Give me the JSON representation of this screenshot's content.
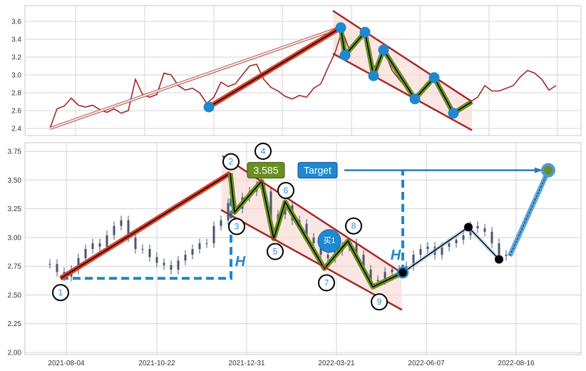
{
  "colors": {
    "price_line": "#a0282a",
    "candle": "#4a5570",
    "trend": "#d9402a",
    "wave": "#6b8e23",
    "channel": "#a52a2a",
    "channel_fill": "#f6d6d0",
    "accent_blue": "#1e88d0",
    "marker_black": "#000000"
  },
  "chart_data": [
    {
      "type": "line",
      "panel": "top",
      "ylim": [
        2.33,
        3.78
      ],
      "yticks": [
        2.4,
        2.6,
        2.8,
        3.0,
        3.2,
        3.4,
        3.6
      ],
      "grid": true,
      "series": [
        {
          "values": [
            2.4,
            2.62,
            2.65,
            2.74,
            2.66,
            2.64,
            2.66,
            2.61,
            2.58,
            2.62,
            2.57,
            2.6,
            2.95,
            2.78,
            2.75,
            2.78,
            3.02,
            3.0,
            2.88,
            2.83,
            2.85,
            2.8,
            2.68,
            2.75,
            2.92,
            2.87,
            2.9,
            3.0,
            3.1,
            3.12,
            2.95,
            2.86,
            2.82,
            2.76,
            2.73,
            2.77,
            2.75,
            2.85,
            2.9,
            3.08,
            3.25,
            3.5,
            3.28,
            3.35,
            3.45,
            3.1,
            3.1,
            3.25,
            3.05,
            2.95,
            2.85,
            2.75,
            2.8,
            2.88,
            2.95,
            2.8,
            2.62,
            2.58,
            2.66,
            2.7,
            2.75,
            2.88,
            2.82,
            2.82,
            2.85,
            2.88,
            2.98,
            3.05,
            3.02,
            2.95,
            2.83,
            2.88
          ]
        }
      ],
      "trend_arrow": [
        [
          0,
          2.4
        ],
        [
          40.3,
          3.52
        ]
      ],
      "trend_line": [
        [
          22.3,
          2.64
        ],
        [
          40.8,
          3.53
        ]
      ],
      "wave_points": [
        [
          22.3,
          2.64
        ],
        [
          40.8,
          3.53
        ],
        [
          41.4,
          3.22
        ],
        [
          44.2,
          3.48
        ],
        [
          45.4,
          2.99
        ],
        [
          46.8,
          3.28
        ],
        [
          51.2,
          2.73
        ],
        [
          53.9,
          2.97
        ],
        [
          56.6,
          2.57
        ],
        [
          59.2,
          2.7
        ]
      ],
      "channel_upper": [
        [
          39.7,
          3.72
        ],
        [
          59.2,
          2.7
        ]
      ],
      "channel_lower": [
        [
          39.7,
          3.24
        ],
        [
          59.2,
          2.38
        ]
      ]
    },
    {
      "type": "candlestick",
      "panel": "bottom",
      "ylim": [
        1.98,
        3.83
      ],
      "yticks": [
        "2.00",
        "2.25",
        "2.50",
        "2.75",
        "3.00",
        "3.25",
        "3.50",
        "3.75"
      ],
      "xticks": [
        {
          "label": "2021-08-04",
          "bar": 2.3
        },
        {
          "label": "2021-10-22",
          "bar": 15
        },
        {
          "label": "2021-12-31",
          "bar": 27.6
        },
        {
          "label": "2022-03-21",
          "bar": 40.2
        },
        {
          "label": "2022-06-07",
          "bar": 52.8
        },
        {
          "label": "2022-08-16",
          "bar": 65.4
        }
      ],
      "grid": true,
      "close": [
        2.77,
        2.7,
        2.66,
        2.72,
        2.82,
        2.9,
        2.95,
        2.92,
        3.02,
        3.1,
        3.15,
        3.0,
        2.9,
        2.9,
        2.83,
        2.78,
        2.76,
        2.72,
        2.8,
        2.85,
        2.9,
        2.95,
        2.95,
        3.1,
        3.15,
        3.3,
        3.25,
        3.35,
        3.4,
        3.45,
        3.4,
        3.1,
        3.2,
        3.28,
        3.15,
        3.12,
        3.0,
        2.95,
        2.85,
        2.82,
        2.88,
        2.92,
        2.95,
        2.85,
        2.72,
        2.62,
        2.63,
        2.7,
        2.72,
        2.7,
        2.75,
        2.85,
        2.9,
        2.92,
        2.85,
        2.92,
        2.95,
        2.98,
        3.02,
        3.1,
        3.08,
        3.05,
        2.95,
        2.85,
        2.84
      ],
      "trend_line": [
        [
          1.5,
          2.645
        ],
        [
          25.3,
          3.56
        ]
      ],
      "wave_points": [
        {
          "label": "1",
          "bar": 1.5,
          "value": 2.645
        },
        {
          "label": "2",
          "bar": 25.3,
          "value": 3.56
        },
        {
          "label": "3",
          "bar": 25.9,
          "value": 3.22
        },
        {
          "label": "4",
          "bar": 29.7,
          "value": 3.49
        },
        {
          "label": "5",
          "bar": 31.4,
          "value": 2.99
        },
        {
          "label": "6",
          "bar": 33.0,
          "value": 3.31
        },
        {
          "label": "7",
          "bar": 38.5,
          "value": 2.73
        },
        {
          "label": "8",
          "bar": 41.8,
          "value": 2.97
        },
        {
          "label": "9",
          "bar": 45.3,
          "value": 2.57
        },
        {
          "label": "",
          "bar": 49.5,
          "value": 2.695
        }
      ],
      "channel_upper": [
        [
          24.2,
          3.71
        ],
        [
          49.3,
          2.695
        ]
      ],
      "channel_lower": [
        [
          24.0,
          3.24
        ],
        [
          49.4,
          2.37
        ]
      ],
      "forecast_points": [
        [
          49.5,
          2.695
        ],
        [
          58.7,
          3.09
        ],
        [
          63.0,
          2.81
        ]
      ],
      "target_leg": [
        [
          64.5,
          2.84
        ],
        [
          69.9,
          3.58
        ]
      ],
      "target_value": 3.585,
      "annotations": {
        "price_label": "3.585",
        "target_label": "Target",
        "buy_label": "买1",
        "h_label": "H"
      }
    }
  ]
}
